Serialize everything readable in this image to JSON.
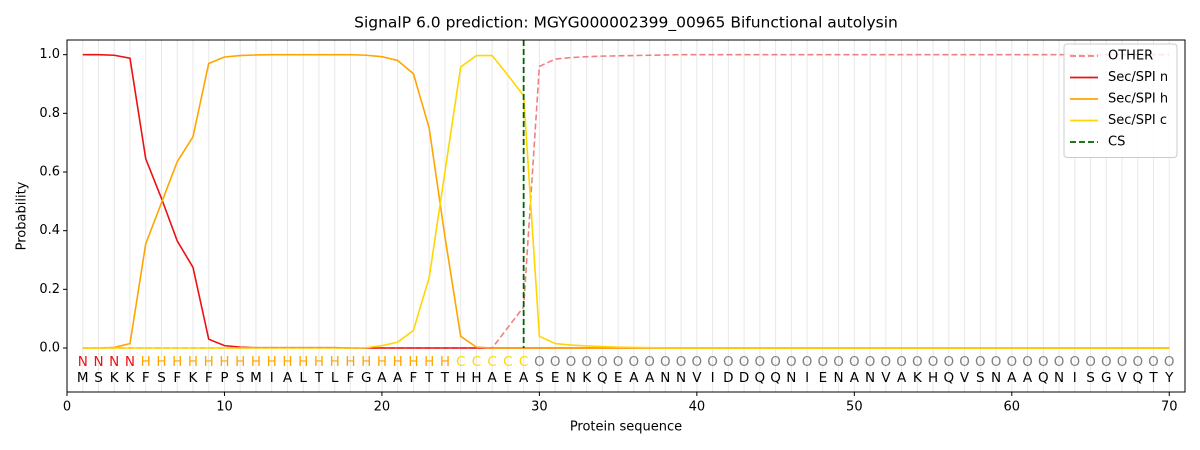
{
  "chart_data": {
    "type": "line",
    "title": "SignalP 6.0 prediction: MGYG000002399_00965 Bifunctional autolysin",
    "x_label": "Protein sequence",
    "y_label": "Probability",
    "x": [
      1,
      2,
      3,
      4,
      5,
      6,
      7,
      8,
      9,
      10,
      11,
      12,
      13,
      14,
      15,
      16,
      17,
      18,
      19,
      20,
      21,
      22,
      23,
      24,
      25,
      26,
      27,
      28,
      29,
      30,
      31,
      32,
      33,
      34,
      35,
      36,
      37,
      38,
      39,
      40,
      41,
      42,
      43,
      44,
      45,
      46,
      47,
      48,
      49,
      50,
      51,
      52,
      53,
      54,
      55,
      56,
      57,
      58,
      59,
      60,
      61,
      62,
      63,
      64,
      65,
      66,
      67,
      68,
      69,
      70
    ],
    "xlim": [
      0,
      71
    ],
    "ylim": [
      -0.15,
      1.05
    ],
    "xticks": [
      0,
      10,
      20,
      30,
      40,
      50,
      60,
      70
    ],
    "yticks": [
      {
        "value": 0,
        "label": "0.0"
      },
      {
        "value": 0.2,
        "label": "0.2"
      },
      {
        "value": 0.4,
        "label": "0.4"
      },
      {
        "value": 0.6,
        "label": "0.6"
      },
      {
        "value": 0.8,
        "label": "0.8"
      },
      {
        "value": 1,
        "label": "1.0"
      }
    ],
    "grid": true,
    "legend": "upper right",
    "series": [
      {
        "name": "OTHER",
        "color": "#f08080",
        "dashed": true,
        "values": [
          0,
          0,
          0,
          0,
          0,
          0,
          0,
          0,
          0,
          0,
          0,
          0,
          0,
          0,
          0,
          0,
          0,
          0,
          0,
          0,
          0,
          0,
          0,
          0,
          0,
          0,
          0,
          0.07,
          0.14,
          0.96,
          0.985,
          0.99,
          0.993,
          0.995,
          0.996,
          0.997,
          0.998,
          0.999,
          1,
          1,
          1,
          1,
          1,
          1,
          1,
          1,
          1,
          1,
          1,
          1,
          1,
          1,
          1,
          1,
          1,
          1,
          1,
          1,
          1,
          1,
          1,
          1,
          1,
          1,
          1,
          1,
          1,
          1,
          1,
          1
        ]
      },
      {
        "name": "Sec/SPI n",
        "color": "#ee1111",
        "dashed": false,
        "values": [
          1,
          1,
          0.998,
          0.988,
          0.645,
          0.51,
          0.365,
          0.275,
          0.03,
          0.008,
          0.003,
          0.001,
          0.001,
          0.001,
          0.001,
          0.001,
          0.001,
          0,
          0,
          0,
          0,
          0,
          0,
          0,
          0,
          0,
          0,
          0,
          0,
          0,
          0,
          0,
          0,
          0,
          0,
          0,
          0,
          0,
          0,
          0,
          0,
          0,
          0,
          0,
          0,
          0,
          0,
          0,
          0,
          0,
          0,
          0,
          0,
          0,
          0,
          0,
          0,
          0,
          0,
          0,
          0,
          0,
          0,
          0,
          0,
          0,
          0,
          0,
          0,
          0
        ]
      },
      {
        "name": "Sec/SPI h",
        "color": "#ffa500",
        "dashed": false,
        "values": [
          0,
          0,
          0.002,
          0.015,
          0.355,
          0.495,
          0.635,
          0.72,
          0.97,
          0.992,
          0.997,
          0.999,
          1,
          1,
          1,
          1,
          1,
          1,
          0.998,
          0.993,
          0.98,
          0.935,
          0.75,
          0.38,
          0.04,
          0.003,
          0,
          0,
          0,
          0,
          0,
          0,
          0,
          0,
          0,
          0,
          0,
          0,
          0,
          0,
          0,
          0,
          0,
          0,
          0,
          0,
          0,
          0,
          0,
          0,
          0,
          0,
          0,
          0,
          0,
          0,
          0,
          0,
          0,
          0,
          0,
          0,
          0,
          0,
          0,
          0,
          0,
          0,
          0,
          0
        ]
      },
      {
        "name": "Sec/SPI c",
        "color": "#ffd700",
        "dashed": false,
        "values": [
          0,
          0,
          0,
          0,
          0,
          0,
          0,
          0,
          0,
          0,
          0,
          0,
          0,
          0,
          0,
          0,
          0,
          0,
          0.001,
          0.008,
          0.02,
          0.06,
          0.24,
          0.6,
          0.958,
          0.997,
          0.997,
          0.93,
          0.86,
          0.04,
          0.015,
          0.01,
          0.007,
          0.005,
          0.003,
          0.002,
          0.001,
          0,
          0,
          0,
          0,
          0,
          0,
          0,
          0,
          0,
          0,
          0,
          0,
          0,
          0,
          0,
          0,
          0,
          0,
          0,
          0,
          0,
          0,
          0,
          0,
          0,
          0,
          0,
          0,
          0,
          0,
          0,
          0,
          0
        ]
      }
    ],
    "cs": {
      "name": "CS",
      "x": 29,
      "color": "#006400"
    },
    "annotation": [
      "N",
      "N",
      "N",
      "N",
      "H",
      "H",
      "H",
      "H",
      "H",
      "H",
      "H",
      "H",
      "H",
      "H",
      "H",
      "H",
      "H",
      "H",
      "H",
      "H",
      "H",
      "H",
      "H",
      "H",
      "C",
      "C",
      "C",
      "C",
      "C",
      "O",
      "O",
      "O",
      "O",
      "O",
      "O",
      "O",
      "O",
      "O",
      "O",
      "O",
      "O",
      "O",
      "O",
      "O",
      "O",
      "O",
      "O",
      "O",
      "O",
      "O",
      "O",
      "O",
      "O",
      "O",
      "O",
      "O",
      "O",
      "O",
      "O",
      "O",
      "O",
      "O",
      "O",
      "O",
      "O",
      "O",
      "O",
      "O",
      "O",
      "O"
    ],
    "annotation_colors": {
      "N": "#ee1111",
      "H": "#ffa500",
      "C": "#ffd700",
      "O": "#808080"
    },
    "sequence": [
      "M",
      "S",
      "K",
      "K",
      "F",
      "S",
      "F",
      "K",
      "F",
      "P",
      "S",
      "M",
      "I",
      "A",
      "L",
      "T",
      "L",
      "F",
      "G",
      "A",
      "A",
      "F",
      "T",
      "T",
      "H",
      "H",
      "A",
      "E",
      "A",
      "S",
      "E",
      "N",
      "K",
      "Q",
      "E",
      "A",
      "A",
      "N",
      "N",
      "V",
      "I",
      "D",
      "D",
      "Q",
      "Q",
      "N",
      "I",
      "E",
      "N",
      "A",
      "N",
      "V",
      "A",
      "K",
      "H",
      "Q",
      "V",
      "S",
      "N",
      "A",
      "A",
      "Q",
      "N",
      "I",
      "S",
      "G",
      "V",
      "Q",
      "T",
      "Y"
    ]
  }
}
